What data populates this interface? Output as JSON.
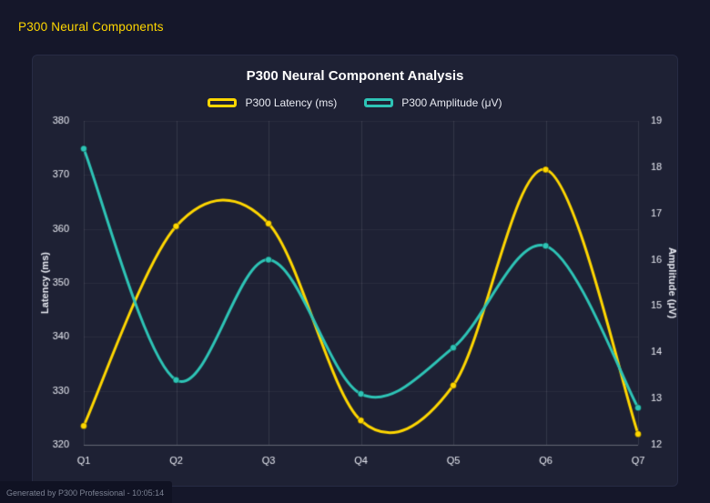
{
  "header": {
    "title": "P300 Neural Components"
  },
  "footer": {
    "text": "Generated by P300 Professional - 10:05:14"
  },
  "colors": {
    "background": "#15172a",
    "panel": "#1e2134",
    "accent_yellow": "#FFD700",
    "accent_teal": "#2EC4B6",
    "title_text": "#ffffff",
    "tick_text": "#e8eaf2"
  },
  "chart_data": {
    "type": "line",
    "title": "P300 Neural Component Analysis",
    "categories": [
      "Q1",
      "Q2",
      "Q3",
      "Q4",
      "Q5",
      "Q6",
      "Q7"
    ],
    "series": [
      {
        "name": "P300 Latency (ms)",
        "axis": "left",
        "color": "#FFD700",
        "values": [
          323.5,
          360.5,
          361,
          324.5,
          331,
          371,
          322
        ]
      },
      {
        "name": "P300 Amplitude (μV)",
        "axis": "right",
        "color": "#2EC4B6",
        "values": [
          18.4,
          13.4,
          16.0,
          13.1,
          14.1,
          16.3,
          12.8
        ]
      }
    ],
    "left_axis": {
      "label": "Latency (ms)",
      "min": 320,
      "max": 380,
      "step": 10
    },
    "right_axis": {
      "label": "Amplitude (μV)",
      "min": 12,
      "max": 19,
      "step": 1
    },
    "grid": true,
    "smooth": true,
    "legend_position": "top"
  }
}
